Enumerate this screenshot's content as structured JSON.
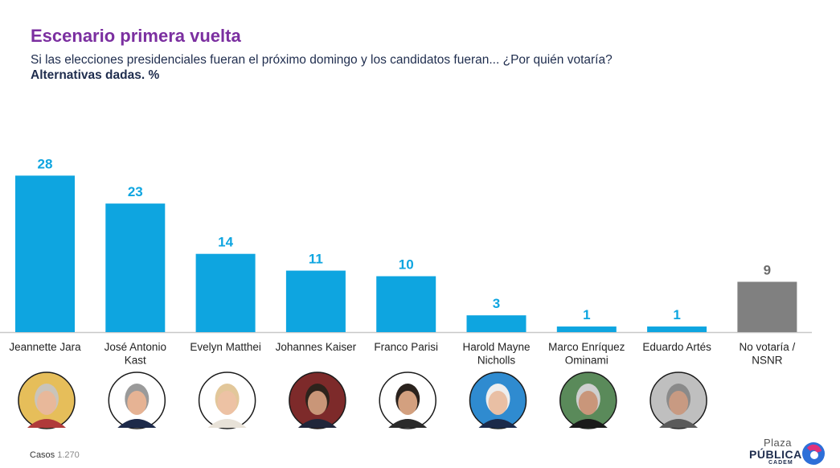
{
  "header": {
    "title": "Escenario primera vuelta",
    "subtitle": "Si las elecciones presidenciales fueran el próximo domingo y los candidatos fueran... ¿Por quién votaría?",
    "subtitle2": "Alternativas dadas. %"
  },
  "chart_data": {
    "type": "bar",
    "title": "Escenario primera vuelta",
    "categories": [
      [
        "Jeannette Jara"
      ],
      [
        "José Antonio",
        "Kast"
      ],
      [
        "Evelyn Matthei"
      ],
      [
        "Johannes Kaiser"
      ],
      [
        "Franco Parisi"
      ],
      [
        "Harold Mayne",
        "Nicholls"
      ],
      [
        "Marco Enríquez",
        "Ominami"
      ],
      [
        "Eduardo Artés"
      ],
      [
        "No votaría /",
        "NSNR"
      ]
    ],
    "values": [
      28,
      23,
      14,
      11,
      10,
      3,
      1,
      1,
      9
    ],
    "bar_colors": [
      "#0ea5e0",
      "#0ea5e0",
      "#0ea5e0",
      "#0ea5e0",
      "#0ea5e0",
      "#0ea5e0",
      "#0ea5e0",
      "#0ea5e0",
      "#808080"
    ],
    "label_colors": [
      "#0ea5e0",
      "#0ea5e0",
      "#0ea5e0",
      "#0ea5e0",
      "#0ea5e0",
      "#0ea5e0",
      "#0ea5e0",
      "#0ea5e0",
      "#6b6b6b"
    ],
    "portraits": [
      true,
      true,
      true,
      true,
      true,
      true,
      true,
      true,
      false
    ],
    "xlabel": "",
    "ylabel": "",
    "ylim": [
      0,
      30
    ]
  },
  "footer": {
    "casos_label": "Casos",
    "casos_value": "1.270"
  },
  "logo": {
    "plaza": "Plaza",
    "publica": "PÚBLICA",
    "cadem": "CADEM"
  }
}
